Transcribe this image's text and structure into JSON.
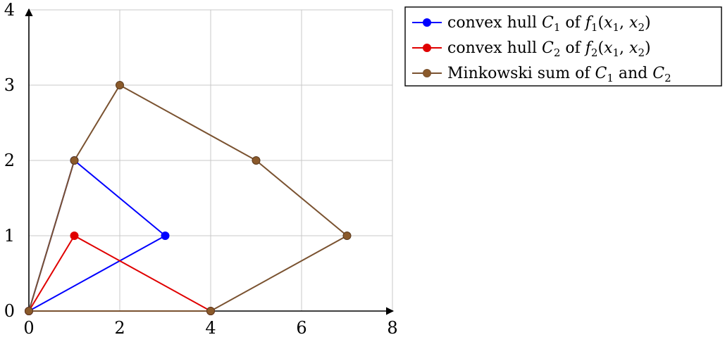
{
  "chart_data": {
    "type": "line",
    "title": "",
    "xlabel": "",
    "ylabel": "",
    "xlim": [
      0,
      8
    ],
    "ylim": [
      0,
      4
    ],
    "grid": true,
    "legend_position": "outside-top-right",
    "x_ticks": [
      "0",
      "2",
      "4",
      "6",
      "8"
    ],
    "y_ticks": [
      "0",
      "1",
      "2",
      "3",
      "4"
    ],
    "series": [
      {
        "name": "convex hull C1 of f1(x1, x2)",
        "legend": {
          "pre": "convex hull ",
          "sym": "C",
          "sub": "1",
          "mid": " of ",
          "fn": "f",
          "fnsub": "1",
          "args": "(x1, x2)"
        },
        "color": "#0000ff",
        "points": [
          [
            0,
            0
          ],
          [
            1,
            2
          ],
          [
            3,
            1
          ],
          [
            0,
            0
          ]
        ]
      },
      {
        "name": "convex hull C2 of f2(x1, x2)",
        "legend": {
          "pre": "convex hull ",
          "sym": "C",
          "sub": "2",
          "mid": " of ",
          "fn": "f",
          "fnsub": "2",
          "args": "(x1, x2)"
        },
        "color": "#e00000",
        "points": [
          [
            0,
            0
          ],
          [
            1,
            1
          ],
          [
            4,
            0
          ],
          [
            0,
            0
          ]
        ]
      },
      {
        "name": "Minkowski sum of C1 and C2",
        "legend": {
          "pre": "Minkowski sum of ",
          "sym": "C",
          "sub": "1",
          "mid": " and ",
          "sym2": "C",
          "sub2": "2"
        },
        "color": "#7a5230",
        "marker_fill": "#8b5a2b",
        "points": [
          [
            0,
            0
          ],
          [
            1,
            2
          ],
          [
            2,
            3
          ],
          [
            5,
            2
          ],
          [
            7,
            1
          ],
          [
            4,
            0
          ],
          [
            0,
            0
          ]
        ]
      }
    ]
  }
}
